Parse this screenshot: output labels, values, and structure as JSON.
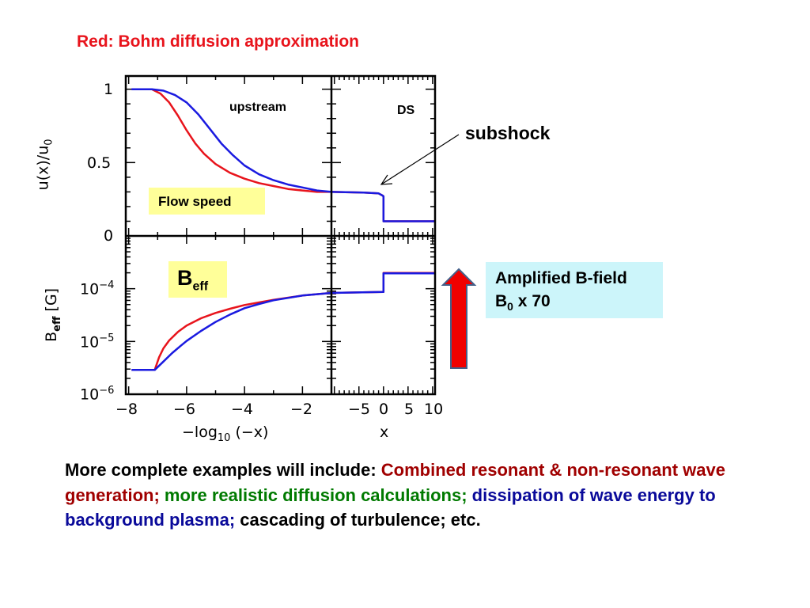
{
  "slide": {
    "title": "Red: Bohm diffusion approximation",
    "subshock_label": "subshock",
    "amplified_box": {
      "line1": "Amplified B-field",
      "line2_base": "B",
      "line2_sub": "0",
      "line2_rest": " x 70"
    },
    "bottom_text": [
      {
        "text": "More complete examples will include: ",
        "color": "black"
      },
      {
        "text": "Combined resonant & non-resonant wave generation; ",
        "color": "red"
      },
      {
        "text": "more realistic diffusion calculations; ",
        "color": "green"
      },
      {
        "text": "dissipation of wave energy to background plasma; ",
        "color": "blue"
      },
      {
        "text": "cascading of turbulence; etc.",
        "color": "black"
      }
    ],
    "colors": {
      "red_series": "#e8141c",
      "blue_series": "#1a1ae0",
      "arrow_fill": "#f00000",
      "arrow_edge": "#44608a",
      "box_bg": "#ccf5fa"
    }
  },
  "chart_data": {
    "type": "line",
    "series_names": [
      "red",
      "blue"
    ],
    "panels": {
      "upstream_flow": {
        "annotation": "upstream",
        "label_box": "Flow speed",
        "xlim": [
          -8.1,
          -1.0
        ],
        "ylim": [
          0,
          1.09
        ],
        "yscale": "linear",
        "series": [
          {
            "name": "red",
            "x": [
              -7.9,
              -7.2,
              -6.9,
              -6.6,
              -6.3,
              -6.0,
              -5.7,
              -5.4,
              -5.0,
              -4.5,
              -4.0,
              -3.5,
              -3.0,
              -2.5,
              -2.0,
              -1.5,
              -1.0
            ],
            "y": [
              1.0,
              1.0,
              0.97,
              0.91,
              0.82,
              0.72,
              0.63,
              0.56,
              0.49,
              0.43,
              0.39,
              0.36,
              0.34,
              0.32,
              0.31,
              0.3,
              0.3
            ]
          },
          {
            "name": "blue",
            "x": [
              -7.9,
              -7.2,
              -6.8,
              -6.4,
              -6.0,
              -5.6,
              -5.2,
              -4.8,
              -4.4,
              -4.0,
              -3.5,
              -3.0,
              -2.5,
              -2.0,
              -1.5,
              -1.0
            ],
            "y": [
              1.0,
              1.0,
              0.99,
              0.96,
              0.91,
              0.83,
              0.73,
              0.63,
              0.55,
              0.48,
              0.42,
              0.38,
              0.35,
              0.33,
              0.31,
              0.3
            ]
          }
        ]
      },
      "downstream_flow": {
        "annotation": "DS",
        "xlim": [
          -10.6,
          10.5
        ],
        "ylim": [
          0,
          1.09
        ],
        "yscale": "linear",
        "series": [
          {
            "name": "red",
            "x": [
              -10.6,
              -4,
              -1,
              -0.2,
              0,
              0,
              10.5
            ],
            "y": [
              0.3,
              0.295,
              0.29,
              0.275,
              0.27,
              0.1,
              0.1
            ]
          },
          {
            "name": "blue",
            "x": [
              -10.6,
              -4,
              -1,
              -0.2,
              0,
              0,
              10.5
            ],
            "y": [
              0.3,
              0.295,
              0.29,
              0.275,
              0.27,
              0.1,
              0.1
            ]
          }
        ]
      },
      "upstream_b": {
        "label_box_base": "B",
        "label_box_sub": "eff",
        "xlim": [
          -8.1,
          -1.0
        ],
        "ylim_log10": [
          -6,
          -3
        ],
        "yscale": "log",
        "series": [
          {
            "name": "red",
            "x": [
              -7.9,
              -7.1,
              -6.95,
              -6.8,
              -6.6,
              -6.3,
              -6.0,
              -5.5,
              -5.0,
              -4.5,
              -4.0,
              -3.0,
              -2.0,
              -1.0
            ],
            "log10_y": [
              -5.54,
              -5.54,
              -5.3,
              -5.13,
              -4.98,
              -4.82,
              -4.7,
              -4.56,
              -4.46,
              -4.38,
              -4.31,
              -4.21,
              -4.13,
              -4.08
            ]
          },
          {
            "name": "blue",
            "x": [
              -7.9,
              -7.1,
              -6.8,
              -6.5,
              -6.2,
              -6.0,
              -5.5,
              -5.0,
              -4.5,
              -4.0,
              -3.5,
              -3.0,
              -2.0,
              -1.0
            ],
            "log10_y": [
              -5.54,
              -5.54,
              -5.38,
              -5.22,
              -5.08,
              -4.99,
              -4.8,
              -4.63,
              -4.49,
              -4.37,
              -4.29,
              -4.22,
              -4.13,
              -4.08
            ]
          }
        ]
      },
      "downstream_b": {
        "xlim": [
          -10.6,
          10.5
        ],
        "ylim_log10": [
          -6,
          -3
        ],
        "yscale": "log",
        "series": [
          {
            "name": "red",
            "x": [
              -10.6,
              -0.1,
              0,
              0,
              10.5
            ],
            "log10_y": [
              -4.08,
              -4.06,
              -4.06,
              -3.7,
              -3.7
            ]
          },
          {
            "name": "blue",
            "x": [
              -10.6,
              -0.1,
              0,
              0,
              10.5
            ],
            "log10_y": [
              -4.08,
              -4.06,
              -4.06,
              -3.71,
              -3.71
            ]
          }
        ]
      }
    },
    "xlabel_left": {
      "base": "−log",
      "sub": "10",
      "rest": " (−x)"
    },
    "xlabel_right": "x",
    "ylabel_top": {
      "base": "u(x)/u",
      "sub": "0"
    },
    "ylabel_bottom": {
      "base": "B",
      "sub": "eff",
      "rest": "  [G]"
    },
    "x_ticks_left": [
      "−8",
      "−6",
      "−4",
      "−2"
    ],
    "x_ticks_left_values": [
      -8,
      -6,
      -4,
      -2
    ],
    "x_ticks_right": [
      "−5",
      "0",
      "5",
      "10"
    ],
    "x_ticks_right_values": [
      -5,
      0,
      5,
      10
    ],
    "y_ticks_top": [
      "1",
      "0.5",
      "0"
    ],
    "y_ticks_top_values": [
      1,
      0.5,
      0
    ],
    "y_ticks_bottom": [
      {
        "base": "10",
        "exp": "−4"
      },
      {
        "base": "10",
        "exp": "−5"
      },
      {
        "base": "10",
        "exp": "−6"
      }
    ],
    "y_ticks_bottom_values_log10": [
      -4,
      -5,
      -6
    ]
  }
}
